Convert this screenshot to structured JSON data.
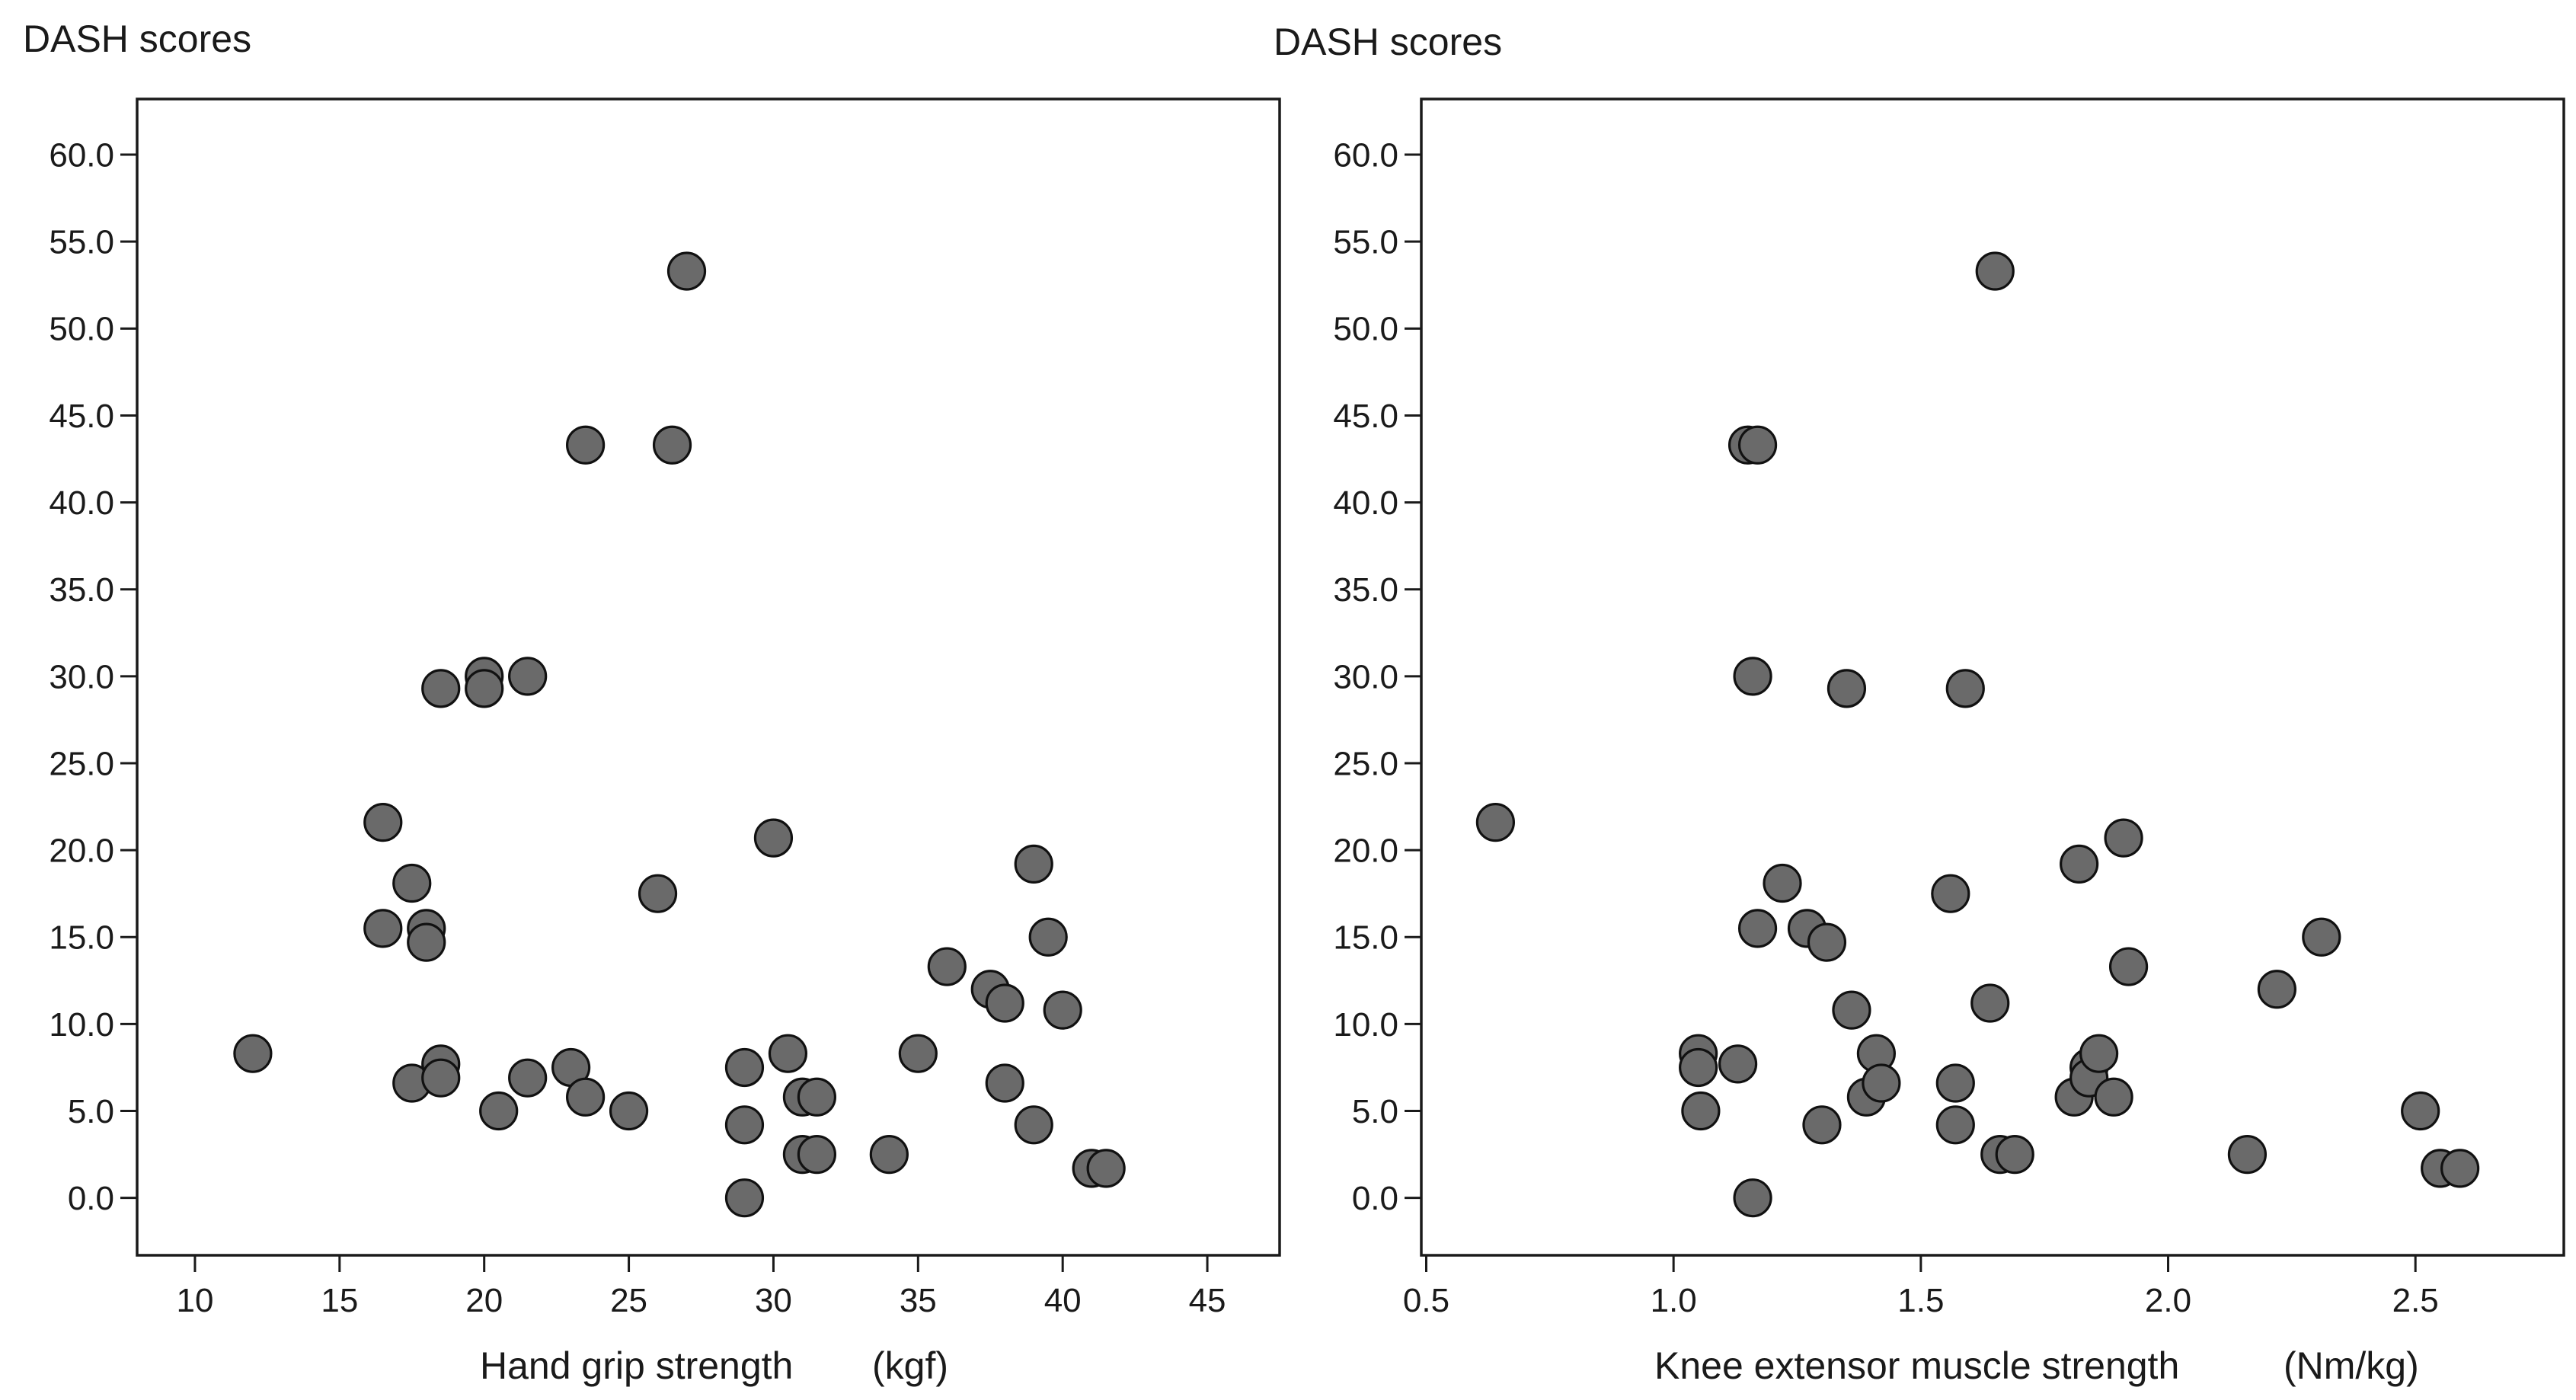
{
  "chart_data": [
    {
      "type": "scatter",
      "title": "",
      "ylabel": "DASH scores",
      "xlabel": "Hand grip strength",
      "xunit": "(kgf)",
      "xlim": [
        8,
        47.5
      ],
      "ylim": [
        -3.3,
        63.2
      ],
      "xticks": [
        10,
        15,
        20,
        25,
        30,
        35,
        40,
        45
      ],
      "xtick_labels": [
        "10",
        "15",
        "20",
        "25",
        "30",
        "35",
        "40",
        "45"
      ],
      "yticks": [
        0,
        5,
        10,
        15,
        20,
        25,
        30,
        35,
        40,
        45,
        50,
        55,
        60
      ],
      "ytick_labels": [
        "0.0",
        "5.0",
        "10.0",
        "15.0",
        "20.0",
        "25.0",
        "30.0",
        "35.0",
        "40.0",
        "45.0",
        "50.0",
        "55.0",
        "60.0"
      ],
      "grid": false,
      "points": [
        {
          "x": 12,
          "y": 8.3
        },
        {
          "x": 16.5,
          "y": 21.6
        },
        {
          "x": 16.5,
          "y": 15.5
        },
        {
          "x": 17.5,
          "y": 18.1
        },
        {
          "x": 17.5,
          "y": 6.6
        },
        {
          "x": 18,
          "y": 15.5
        },
        {
          "x": 18,
          "y": 14.7
        },
        {
          "x": 18.5,
          "y": 29.3
        },
        {
          "x": 18.5,
          "y": 7.7
        },
        {
          "x": 18.5,
          "y": 6.9
        },
        {
          "x": 20,
          "y": 30.0
        },
        {
          "x": 20,
          "y": 29.3
        },
        {
          "x": 20.5,
          "y": 5.0
        },
        {
          "x": 21.5,
          "y": 30.0
        },
        {
          "x": 21.5,
          "y": 6.9
        },
        {
          "x": 23,
          "y": 7.5
        },
        {
          "x": 23.5,
          "y": 43.3
        },
        {
          "x": 23.5,
          "y": 5.8
        },
        {
          "x": 25,
          "y": 5.0
        },
        {
          "x": 26,
          "y": 17.5
        },
        {
          "x": 26.5,
          "y": 43.3
        },
        {
          "x": 27,
          "y": 53.3
        },
        {
          "x": 29,
          "y": 7.5
        },
        {
          "x": 29,
          "y": 4.2
        },
        {
          "x": 29,
          "y": 0.0
        },
        {
          "x": 30,
          "y": 20.7
        },
        {
          "x": 30.5,
          "y": 8.3
        },
        {
          "x": 31,
          "y": 5.8
        },
        {
          "x": 31,
          "y": 2.5
        },
        {
          "x": 31.5,
          "y": 5.8
        },
        {
          "x": 31.5,
          "y": 2.5
        },
        {
          "x": 34,
          "y": 2.5
        },
        {
          "x": 35,
          "y": 8.3
        },
        {
          "x": 36,
          "y": 13.3
        },
        {
          "x": 37.5,
          "y": 12.0
        },
        {
          "x": 38,
          "y": 11.2
        },
        {
          "x": 38,
          "y": 6.6
        },
        {
          "x": 39,
          "y": 19.2
        },
        {
          "x": 39,
          "y": 4.2
        },
        {
          "x": 39.5,
          "y": 15.0
        },
        {
          "x": 40,
          "y": 10.8
        },
        {
          "x": 41,
          "y": 1.7
        },
        {
          "x": 41.5,
          "y": 1.7
        }
      ]
    },
    {
      "type": "scatter",
      "title": "",
      "ylabel": "DASH scores",
      "xlabel": "Knee extensor muscle strength",
      "xunit": "(Nm/kg)",
      "xlim": [
        0.49,
        2.8
      ],
      "ylim": [
        -3.3,
        63.2
      ],
      "xticks": [
        0.5,
        1.0,
        1.5,
        2.0,
        2.5
      ],
      "xtick_labels": [
        "0.5",
        "1.0",
        "1.5",
        "2.0",
        "2.5"
      ],
      "yticks": [
        0,
        5,
        10,
        15,
        20,
        25,
        30,
        35,
        40,
        45,
        50,
        55,
        60
      ],
      "ytick_labels": [
        "0.0",
        "5.0",
        "10.0",
        "15.0",
        "20.0",
        "25.0",
        "30.0",
        "35.0",
        "40.0",
        "45.0",
        "50.0",
        "55.0",
        "60.0"
      ],
      "grid": false,
      "points": [
        {
          "x": 0.64,
          "y": 21.6
        },
        {
          "x": 1.05,
          "y": 8.3
        },
        {
          "x": 1.05,
          "y": 7.5
        },
        {
          "x": 1.055,
          "y": 5.0
        },
        {
          "x": 1.13,
          "y": 7.7
        },
        {
          "x": 1.15,
          "y": 43.3
        },
        {
          "x": 1.17,
          "y": 43.3
        },
        {
          "x": 1.16,
          "y": 30.0
        },
        {
          "x": 1.16,
          "y": 0.0
        },
        {
          "x": 1.17,
          "y": 15.5
        },
        {
          "x": 1.22,
          "y": 18.1
        },
        {
          "x": 1.27,
          "y": 15.5
        },
        {
          "x": 1.3,
          "y": 4.2
        },
        {
          "x": 1.31,
          "y": 14.7
        },
        {
          "x": 1.35,
          "y": 29.3
        },
        {
          "x": 1.36,
          "y": 10.8
        },
        {
          "x": 1.39,
          "y": 5.8
        },
        {
          "x": 1.41,
          "y": 8.3
        },
        {
          "x": 1.42,
          "y": 6.6
        },
        {
          "x": 1.56,
          "y": 17.5
        },
        {
          "x": 1.57,
          "y": 6.6
        },
        {
          "x": 1.57,
          "y": 4.2
        },
        {
          "x": 1.59,
          "y": 29.3
        },
        {
          "x": 1.64,
          "y": 11.2
        },
        {
          "x": 1.65,
          "y": 53.3
        },
        {
          "x": 1.66,
          "y": 2.5
        },
        {
          "x": 1.69,
          "y": 2.5
        },
        {
          "x": 1.81,
          "y": 5.8
        },
        {
          "x": 1.82,
          "y": 19.2
        },
        {
          "x": 1.84,
          "y": 7.5
        },
        {
          "x": 1.84,
          "y": 6.9
        },
        {
          "x": 1.86,
          "y": 8.3
        },
        {
          "x": 1.89,
          "y": 5.8
        },
        {
          "x": 1.91,
          "y": 20.7
        },
        {
          "x": 1.92,
          "y": 13.3
        },
        {
          "x": 2.16,
          "y": 2.5
        },
        {
          "x": 2.22,
          "y": 12.0
        },
        {
          "x": 2.31,
          "y": 15.0
        },
        {
          "x": 2.51,
          "y": 5.0
        },
        {
          "x": 2.55,
          "y": 1.7
        },
        {
          "x": 2.59,
          "y": 1.7
        }
      ]
    }
  ]
}
